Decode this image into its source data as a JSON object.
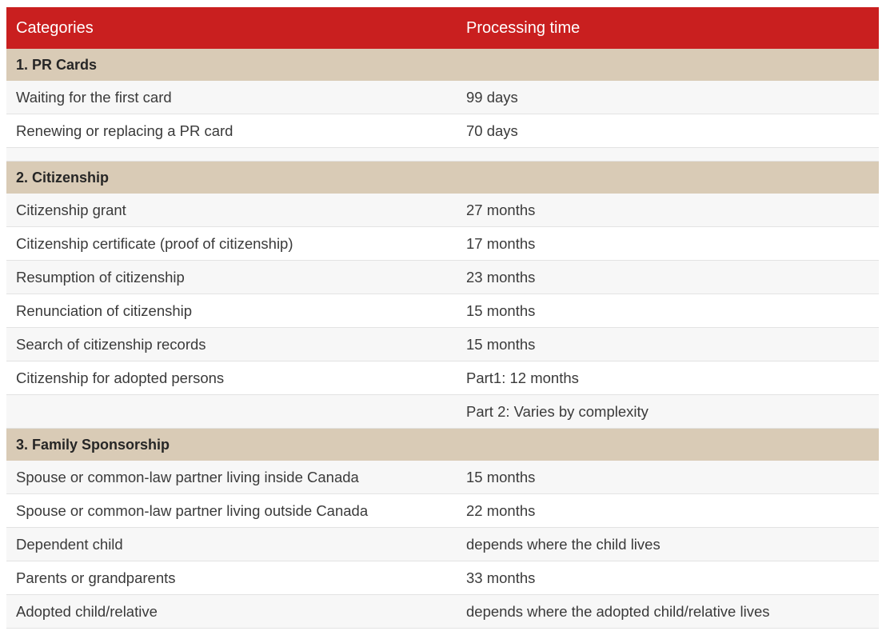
{
  "header": {
    "col_categories": "Categories",
    "col_processing_time": "Processing time"
  },
  "sections": [
    {
      "title": "1. PR Cards",
      "rows": [
        {
          "category": "Waiting for the first card",
          "time": "99 days"
        },
        {
          "category": "Renewing or replacing a PR card",
          "time": "70 days"
        }
      ]
    },
    {
      "title": "2. Citizenship",
      "rows": [
        {
          "category": "Citizenship grant",
          "time": "27 months"
        },
        {
          "category": "Citizenship certificate (proof of citizenship)",
          "time": "17 months"
        },
        {
          "category": "Resumption of citizenship",
          "time": "23 months"
        },
        {
          "category": "Renunciation of citizenship",
          "time": "15 months"
        },
        {
          "category": "Search of citizenship records",
          "time": "15 months"
        },
        {
          "category": "Citizenship for adopted persons",
          "time": "Part1: 12 months"
        },
        {
          "category": "",
          "time": "Part 2: Varies by complexity"
        }
      ]
    },
    {
      "title": "3. Family Sponsorship",
      "rows": [
        {
          "category": "Spouse or common-law partner living inside Canada",
          "time": "15 months"
        },
        {
          "category": "Spouse or common-law partner living outside Canada",
          "time": "22 months"
        },
        {
          "category": "Dependent child",
          "time": "depends where the child lives"
        },
        {
          "category": "Parents or grandparents",
          "time": "33 months"
        },
        {
          "category": "Adopted child/relative",
          "time": "depends where the adopted child/relative lives"
        }
      ]
    }
  ],
  "colors": {
    "header_bg": "#c91f1f",
    "section_bg": "#d9cbb6",
    "row_alt_bg": "#f7f7f7"
  }
}
